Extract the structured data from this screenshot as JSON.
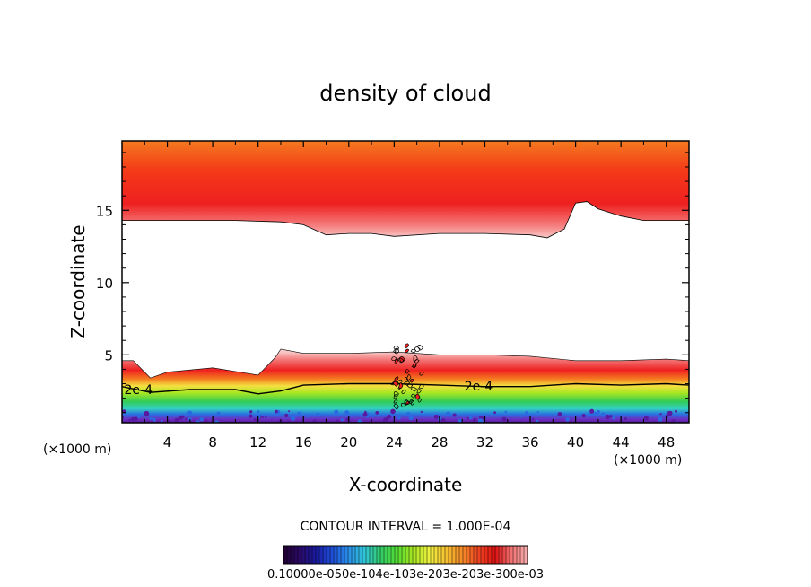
{
  "chart_data": {
    "type": "contour",
    "title": "density of cloud",
    "xlabel": "X-coordinate",
    "ylabel": "Z-coordinate",
    "x_unit_label": "(×1000 m)",
    "x_unit_label_right": "(×1000 m)",
    "xlim": [
      0,
      50
    ],
    "ylim": [
      0.3,
      19.8
    ],
    "x_ticks": [
      4,
      8,
      12,
      16,
      20,
      24,
      28,
      32,
      36,
      40,
      44,
      48
    ],
    "x_tick_labels": [
      "4",
      "8",
      "12",
      "16",
      "20",
      "24",
      "28",
      "32",
      "36",
      "40",
      "44",
      "48"
    ],
    "y_ticks": [
      5,
      10,
      15
    ],
    "y_tick_labels": [
      "5",
      "10",
      "15"
    ],
    "contour_interval_text": "CONTOUR INTERVAL = 1.000E-04",
    "contour_labels": [
      "2e-4",
      "2e-4"
    ],
    "contour_level_2e-4": {
      "x": [
        0,
        2.5,
        6,
        10,
        12,
        14,
        16,
        20,
        24,
        28,
        32,
        36,
        40,
        44,
        48,
        50
      ],
      "z": [
        2.8,
        2.4,
        2.6,
        2.6,
        2.3,
        2.5,
        2.9,
        3.0,
        3.0,
        2.9,
        2.8,
        2.8,
        3.0,
        2.9,
        3.0,
        2.9
      ]
    },
    "upper_cloud_base": {
      "x": [
        0,
        4,
        10,
        14,
        16,
        18,
        20,
        22,
        24,
        28,
        32,
        36,
        37.5,
        39,
        40,
        41,
        42,
        44,
        46,
        48,
        50
      ],
      "z": [
        14.3,
        14.3,
        14.3,
        14.2,
        14.0,
        13.3,
        13.4,
        13.4,
        13.2,
        13.4,
        13.4,
        13.3,
        13.1,
        13.7,
        15.5,
        15.6,
        15.1,
        14.6,
        14.3,
        14.3,
        14.3
      ]
    },
    "upper_cloud_top_z": 19.8,
    "upper_cloud_max_center": {
      "x": 28,
      "z": 18.5
    },
    "lower_cloud_top": {
      "x": [
        0,
        1,
        2.5,
        4,
        8,
        12,
        13.5,
        14,
        16,
        20,
        24,
        28,
        32,
        36,
        40,
        44,
        48,
        50
      ],
      "z": [
        4.6,
        4.6,
        3.4,
        3.8,
        4.1,
        3.6,
        4.8,
        5.4,
        5.1,
        5.1,
        5.2,
        5.0,
        5.0,
        4.9,
        4.6,
        4.6,
        4.7,
        4.6
      ]
    },
    "lower_cloud_base_z": 0.3,
    "colorbar": {
      "labels_text": "0.10000e-050e-104e-103e-203e-203e-300e-03",
      "min": 0.0,
      "max": 0.0003,
      "colors": [
        "#220033",
        "#2a0a66",
        "#1a1aa0",
        "#1e4fd8",
        "#2a8fe8",
        "#30c6d8",
        "#33cc66",
        "#55dd33",
        "#a8e622",
        "#f0f040",
        "#f5c030",
        "#f58a28",
        "#ee4422",
        "#dd1111",
        "#f07070",
        "#f8b0b0"
      ]
    }
  }
}
